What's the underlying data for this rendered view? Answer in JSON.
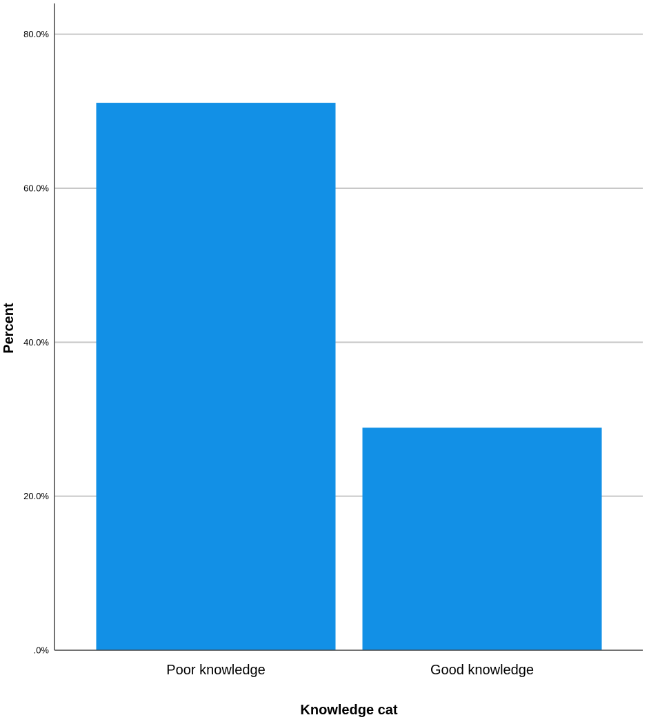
{
  "chart_data": {
    "type": "bar",
    "categories": [
      "Poor knowledge",
      "Good knowledge"
    ],
    "values": [
      71.1,
      28.9
    ],
    "xlabel": "Knowledge cat",
    "ylabel": "Percent",
    "ylim": [
      0,
      84
    ],
    "yticks": [
      0,
      20,
      40,
      60,
      80
    ],
    "ytick_labels": [
      ".0%",
      "20.0%",
      "40.0%",
      "60.0%",
      "80.0%"
    ],
    "grid": true,
    "bar_color": "#1290E6",
    "grid_color": "#C8C8C8",
    "axis_color": "#444444"
  }
}
